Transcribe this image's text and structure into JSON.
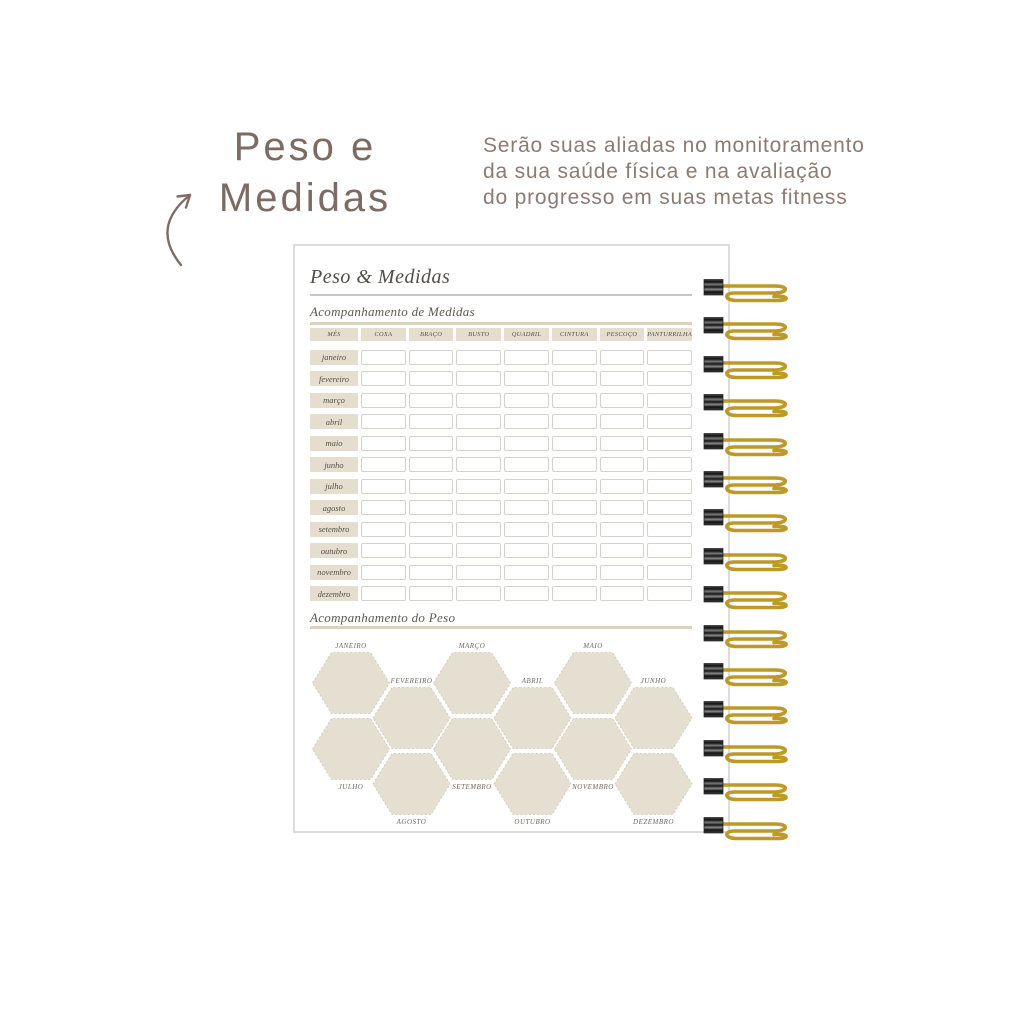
{
  "headline": {
    "line1": "Peso e",
    "line2": "Medidas"
  },
  "intro": {
    "lines": [
      "Serão suas aliadas no monitoramento",
      "da sua saúde física e na avaliação",
      "do progresso em suas metas fitness"
    ]
  },
  "page": {
    "title": "Peso & Medidas",
    "sections": {
      "measures": "Acompanhamento de Medidas",
      "weight": "Acompanhamento do Peso"
    },
    "measure_table": {
      "columns": [
        "MÊS",
        "COXA",
        "BRAÇO",
        "BUSTO",
        "QUADRIL",
        "CINTURA",
        "PESCOÇO",
        "PANTURRILHA"
      ],
      "months": [
        "janeiro",
        "fevereiro",
        "março",
        "abril",
        "maio",
        "junho",
        "julho",
        "agosto",
        "setembro",
        "outubro",
        "novembro",
        "dezembro"
      ],
      "empty_cell_value": ""
    },
    "weight_hexagons": {
      "months": [
        "JANEIRO",
        "FEVEREIRO",
        "MARÇO",
        "ABRIL",
        "MAIO",
        "JUNHO",
        "JULHO",
        "AGOSTO",
        "SETEMBRO",
        "OUTUBRO",
        "NOVEMBRO",
        "DEZEMBRO"
      ]
    }
  },
  "icons": {
    "arrow": "curved-arrow-icon",
    "binding": "spiral-binding-coil"
  },
  "colors": {
    "beige_fill": "#e5dfd1",
    "beige_cell": "#e5dece",
    "tan_rule": "#ddd3bd",
    "gray_rule": "#c6c6c6",
    "spiral_gold": "#bd9a27",
    "headline_brown": "#7c6b62",
    "page_text": "#55504a"
  }
}
